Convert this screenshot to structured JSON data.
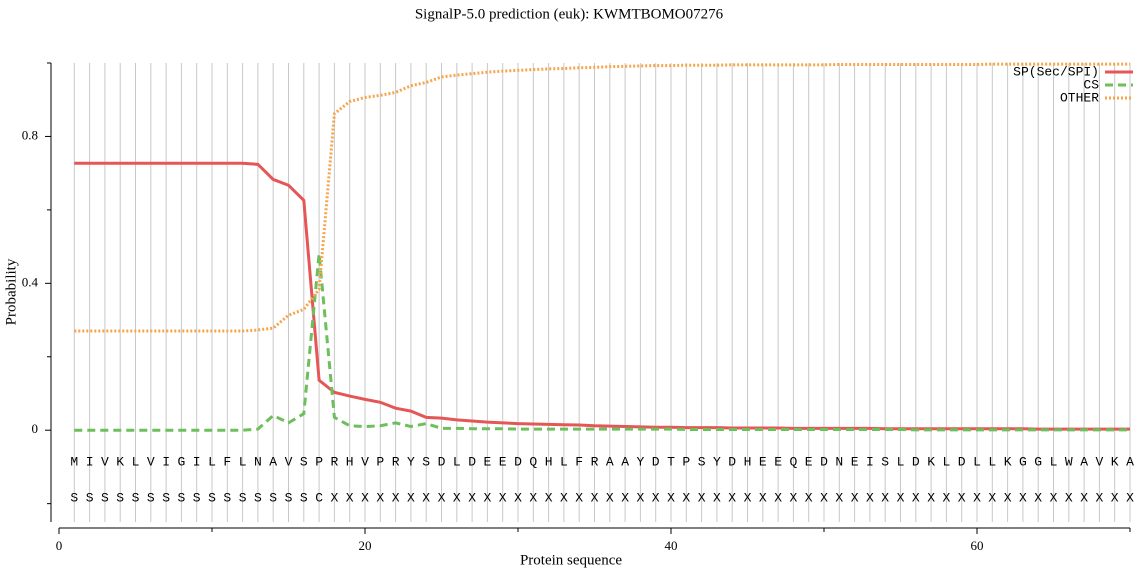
{
  "chart_data": {
    "type": "line",
    "title": "SignalP-5.0 prediction (euk):  KWMTBOMO07276",
    "xlabel": "Protein sequence",
    "ylabel": "Probability",
    "x": [
      1,
      2,
      3,
      4,
      5,
      6,
      7,
      8,
      9,
      10,
      11,
      12,
      13,
      14,
      15,
      16,
      17,
      18,
      19,
      20,
      21,
      22,
      23,
      24,
      25,
      26,
      27,
      28,
      29,
      30,
      31,
      32,
      33,
      34,
      35,
      36,
      37,
      38,
      39,
      40,
      41,
      42,
      43,
      44,
      45,
      46,
      47,
      48,
      49,
      50,
      51,
      52,
      53,
      54,
      55,
      56,
      57,
      58,
      59,
      60,
      61,
      62,
      63,
      64,
      65,
      66,
      67,
      68,
      69,
      70
    ],
    "residues": [
      "M",
      "I",
      "V",
      "K",
      "L",
      "V",
      "I",
      "G",
      "I",
      "L",
      "F",
      "L",
      "N",
      "A",
      "V",
      "S",
      "P",
      "R",
      "H",
      "V",
      "P",
      "R",
      "Y",
      "S",
      "D",
      "L",
      "D",
      "E",
      "E",
      "D",
      "Q",
      "H",
      "L",
      "F",
      "R",
      "A",
      "A",
      "Y",
      "D",
      "T",
      "P",
      "S",
      "Y",
      "D",
      "H",
      "E",
      "E",
      "Q",
      "E",
      "D",
      "N",
      "E",
      "I",
      "S",
      "L",
      "D",
      "K",
      "L",
      "D",
      "L",
      "L",
      "K",
      "G",
      "G",
      "L",
      "W",
      "A",
      "V",
      "K",
      "A"
    ],
    "labels": [
      "S",
      "S",
      "S",
      "S",
      "S",
      "S",
      "S",
      "S",
      "S",
      "S",
      "S",
      "S",
      "S",
      "S",
      "S",
      "S",
      "C",
      "X",
      "X",
      "X",
      "X",
      "X",
      "X",
      "X",
      "X",
      "X",
      "X",
      "X",
      "X",
      "X",
      "X",
      "X",
      "X",
      "X",
      "X",
      "X",
      "X",
      "X",
      "X",
      "X",
      "X",
      "X",
      "X",
      "X",
      "X",
      "X",
      "X",
      "X",
      "X",
      "X",
      "X",
      "X",
      "X",
      "X",
      "X",
      "X",
      "X",
      "X",
      "X",
      "X",
      "X",
      "X",
      "X",
      "X",
      "X",
      "X",
      "X",
      "X",
      "X",
      "X"
    ],
    "series": [
      {
        "name": "SP(Sec/SPI)",
        "color": "#e45756",
        "dash": "solid",
        "values": [
          0.727,
          0.727,
          0.727,
          0.727,
          0.727,
          0.727,
          0.727,
          0.727,
          0.727,
          0.727,
          0.727,
          0.727,
          0.724,
          0.683,
          0.667,
          0.626,
          0.136,
          0.103,
          0.093,
          0.084,
          0.076,
          0.06,
          0.052,
          0.035,
          0.033,
          0.028,
          0.025,
          0.022,
          0.02,
          0.018,
          0.017,
          0.016,
          0.015,
          0.014,
          0.012,
          0.011,
          0.01,
          0.009,
          0.008,
          0.008,
          0.007,
          0.007,
          0.007,
          0.006,
          0.006,
          0.006,
          0.006,
          0.005,
          0.005,
          0.005,
          0.005,
          0.005,
          0.005,
          0.004,
          0.004,
          0.004,
          0.004,
          0.004,
          0.004,
          0.004,
          0.004,
          0.004,
          0.004,
          0.003,
          0.003,
          0.003,
          0.003,
          0.003,
          0.003,
          0.003
        ]
      },
      {
        "name": "CS",
        "color": "#6dbf5b",
        "dash": "dashed",
        "values": [
          0,
          0,
          0,
          0,
          0,
          0,
          0,
          0,
          0,
          0,
          0,
          0,
          0.003,
          0.04,
          0.02,
          0.045,
          0.48,
          0.035,
          0.012,
          0.01,
          0.012,
          0.02,
          0.01,
          0.018,
          0.005,
          0.005,
          0.004,
          0.004,
          0.004,
          0.003,
          0.003,
          0.003,
          0.003,
          0.003,
          0.003,
          0.003,
          0.003,
          0.003,
          0.003,
          0.003,
          0.002,
          0.002,
          0.002,
          0.002,
          0.002,
          0.002,
          0.002,
          0.002,
          0.002,
          0.002,
          0.002,
          0.002,
          0.002,
          0.002,
          0.002,
          0.001,
          0.001,
          0.001,
          0.001,
          0.001,
          0.001,
          0.001,
          0.001,
          0.001,
          0.001,
          0.001,
          0.001,
          0.001,
          0.001,
          0.001
        ]
      },
      {
        "name": "OTHER",
        "color": "#f5a54a",
        "dash": "dotted",
        "values": [
          0.27,
          0.27,
          0.27,
          0.27,
          0.27,
          0.27,
          0.27,
          0.27,
          0.27,
          0.27,
          0.27,
          0.27,
          0.273,
          0.278,
          0.313,
          0.329,
          0.384,
          0.862,
          0.895,
          0.906,
          0.912,
          0.92,
          0.938,
          0.947,
          0.962,
          0.967,
          0.971,
          0.975,
          0.978,
          0.98,
          0.982,
          0.984,
          0.985,
          0.987,
          0.988,
          0.99,
          0.991,
          0.992,
          0.993,
          0.993,
          0.994,
          0.994,
          0.994,
          0.995,
          0.995,
          0.995,
          0.995,
          0.995,
          0.995,
          0.995,
          0.996,
          0.996,
          0.996,
          0.996,
          0.996,
          0.996,
          0.996,
          0.996,
          0.996,
          0.996,
          0.997,
          0.997,
          0.997,
          0.997,
          0.997,
          0.997,
          0.997,
          0.997,
          0.997,
          0.997
        ]
      }
    ],
    "xlim": [
      0,
      70
    ],
    "xticks": [
      0,
      20,
      40,
      60
    ],
    "xminor": [
      10,
      30,
      50,
      70
    ],
    "ylim": [
      -0.25,
      1.0
    ],
    "yticks": [
      0,
      0.4,
      0.8
    ],
    "yminor": [
      -0.2,
      0.2,
      0.6,
      1.0
    ],
    "legend": "upper right"
  }
}
